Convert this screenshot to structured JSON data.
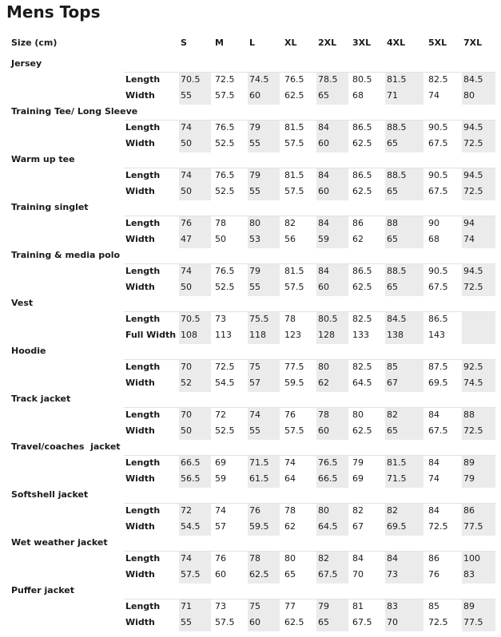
{
  "title": "Mens Tops",
  "header": {
    "label": "Size (cm)",
    "sizes": [
      "S",
      "M",
      "L",
      "XL",
      "2XL",
      "3XL",
      "4XL",
      "5XL",
      "7XL"
    ]
  },
  "sections": [
    {
      "name": "Jersey",
      "rows": [
        {
          "label": "Length",
          "values": [
            "70.5",
            "72.5",
            "74.5",
            "76.5",
            "78.5",
            "80.5",
            "81.5",
            "82.5",
            "84.5"
          ]
        },
        {
          "label": "Width",
          "values": [
            "55",
            "57.5",
            "60",
            "62.5",
            "65",
            "68",
            "71",
            "74",
            "80"
          ]
        }
      ]
    },
    {
      "name": "Training Tee/ Long Sleeve",
      "rows": [
        {
          "label": "Length",
          "values": [
            "74",
            "76.5",
            "79",
            "81.5",
            "84",
            "86.5",
            "88.5",
            "90.5",
            "94.5"
          ]
        },
        {
          "label": "Width",
          "values": [
            "50",
            "52.5",
            "55",
            "57.5",
            "60",
            "62.5",
            "65",
            "67.5",
            "72.5"
          ]
        }
      ]
    },
    {
      "name": "Warm up tee",
      "rows": [
        {
          "label": "Length",
          "values": [
            "74",
            "76.5",
            "79",
            "81.5",
            "84",
            "86.5",
            "88.5",
            "90.5",
            "94.5"
          ]
        },
        {
          "label": "Width",
          "values": [
            "50",
            "52.5",
            "55",
            "57.5",
            "60",
            "62.5",
            "65",
            "67.5",
            "72.5"
          ]
        }
      ]
    },
    {
      "name": "Training singlet",
      "rows": [
        {
          "label": "Length",
          "values": [
            "76",
            "78",
            "80",
            "82",
            "84",
            "86",
            "88",
            "90",
            "94"
          ]
        },
        {
          "label": "Width",
          "values": [
            "47",
            "50",
            "53",
            "56",
            "59",
            "62",
            "65",
            "68",
            "74"
          ]
        }
      ]
    },
    {
      "name": "Training & media polo",
      "rows": [
        {
          "label": "Length",
          "values": [
            "74",
            "76.5",
            "79",
            "81.5",
            "84",
            "86.5",
            "88.5",
            "90.5",
            "94.5"
          ]
        },
        {
          "label": "Width",
          "values": [
            "50",
            "52.5",
            "55",
            "57.5",
            "60",
            "62.5",
            "65",
            "67.5",
            "72.5"
          ]
        }
      ]
    },
    {
      "name": "Vest",
      "rows": [
        {
          "label": "Length",
          "values": [
            "70.5",
            "73",
            "75.5",
            "78",
            "80.5",
            "82.5",
            "84.5",
            "86.5"
          ]
        },
        {
          "label": "Full Width",
          "values": [
            "108",
            "113",
            "118",
            "123",
            "128",
            "133",
            "138",
            "143"
          ]
        }
      ]
    },
    {
      "name": "Hoodie",
      "rows": [
        {
          "label": "Length",
          "values": [
            "70",
            "72.5",
            "75",
            "77.5",
            "80",
            "82.5",
            "85",
            "87.5",
            "92.5"
          ]
        },
        {
          "label": "Width",
          "values": [
            "52",
            "54.5",
            "57",
            "59.5",
            "62",
            "64.5",
            "67",
            "69.5",
            "74.5"
          ]
        }
      ]
    },
    {
      "name": "Track jacket",
      "rows": [
        {
          "label": "Length",
          "values": [
            "70",
            "72",
            "74",
            "76",
            "78",
            "80",
            "82",
            "84",
            "88"
          ]
        },
        {
          "label": "Width",
          "values": [
            "50",
            "52.5",
            "55",
            "57.5",
            "60",
            "62.5",
            "65",
            "67.5",
            "72.5"
          ]
        }
      ]
    },
    {
      "name": "Travel/coaches  jacket",
      "rows": [
        {
          "label": "Length",
          "values": [
            "66.5",
            "69",
            "71.5",
            "74",
            "76.5",
            "79",
            "81.5",
            "84",
            "89"
          ]
        },
        {
          "label": "Width",
          "values": [
            "56.5",
            "59",
            "61.5",
            "64",
            "66.5",
            "69",
            "71.5",
            "74",
            "79"
          ]
        }
      ]
    },
    {
      "name": "Softshell jacket",
      "rows": [
        {
          "label": "Length",
          "values": [
            "72",
            "74",
            "76",
            "78",
            "80",
            "82",
            "82",
            "84",
            "86"
          ]
        },
        {
          "label": "Width",
          "values": [
            "54.5",
            "57",
            "59.5",
            "62",
            "64.5",
            "67",
            "69.5",
            "72.5",
            "77.5"
          ]
        }
      ]
    },
    {
      "name": "Wet weather jacket",
      "rows": [
        {
          "label": "Length",
          "values": [
            "74",
            "76",
            "78",
            "80",
            "82",
            "84",
            "84",
            "86",
            "100"
          ]
        },
        {
          "label": "Width",
          "values": [
            "57.5",
            "60",
            "62.5",
            "65",
            "67.5",
            "70",
            "73",
            "76",
            "83"
          ]
        }
      ]
    },
    {
      "name": "Puffer jacket",
      "rows": [
        {
          "label": "Length",
          "values": [
            "71",
            "73",
            "75",
            "77",
            "79",
            "81",
            "83",
            "85",
            "89"
          ]
        },
        {
          "label": "Width",
          "values": [
            "55",
            "57.5",
            "60",
            "62.5",
            "65",
            "67.5",
            "70",
            "72.5",
            "77.5"
          ]
        }
      ]
    }
  ]
}
